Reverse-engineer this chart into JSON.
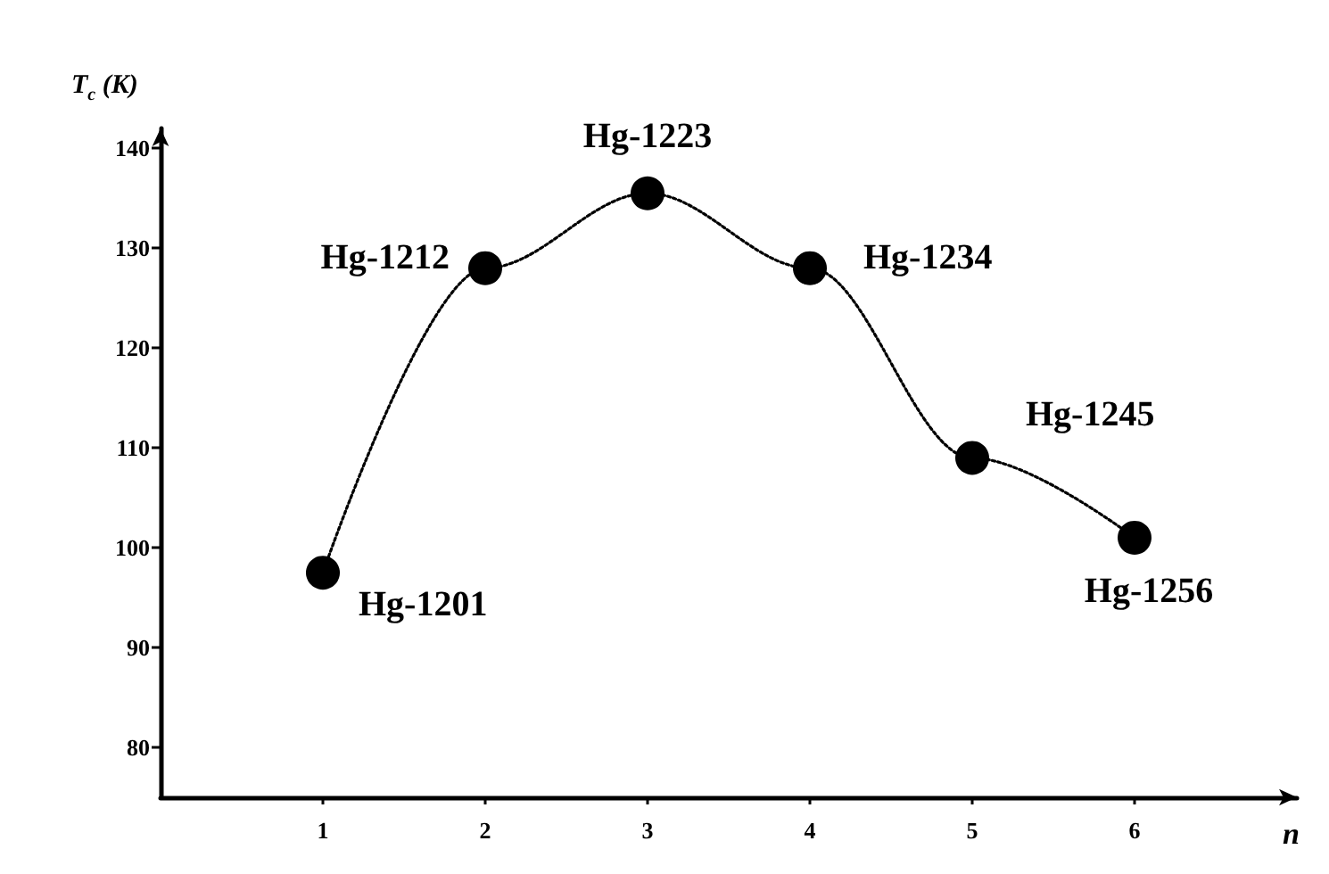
{
  "chart_data": {
    "type": "line",
    "xlabel": "n",
    "ylabel": "T$_{c}$ (K)",
    "x": [
      1,
      2,
      3,
      4,
      5,
      6
    ],
    "series": [
      {
        "color": "#000000",
        "values": [
          97.5,
          128,
          135.5,
          128,
          109,
          101
        ]
      }
    ],
    "xlim": [
      0,
      7
    ],
    "xticks": [
      1,
      2,
      3,
      4,
      5,
      6
    ],
    "ylim": [
      75,
      142
    ],
    "yticks": [
      80,
      90,
      100,
      110,
      120,
      130,
      140
    ],
    "marker": "circle",
    "line_style": "dotted",
    "grid": false,
    "legend": false,
    "annotations": [
      {
        "text": "Hg-1201",
        "x": 1,
        "y": 97.5
      },
      {
        "text": "Hg-1212",
        "x": 2,
        "y": 128
      },
      {
        "text": "Hg-1223",
        "x": 3,
        "y": 135.5
      },
      {
        "text": "Hg-1234",
        "x": 4,
        "y": 128
      },
      {
        "text": "Hg-1245",
        "x": 5,
        "y": 109
      },
      {
        "text": "Hg-1256",
        "x": 6,
        "y": 101
      }
    ]
  }
}
